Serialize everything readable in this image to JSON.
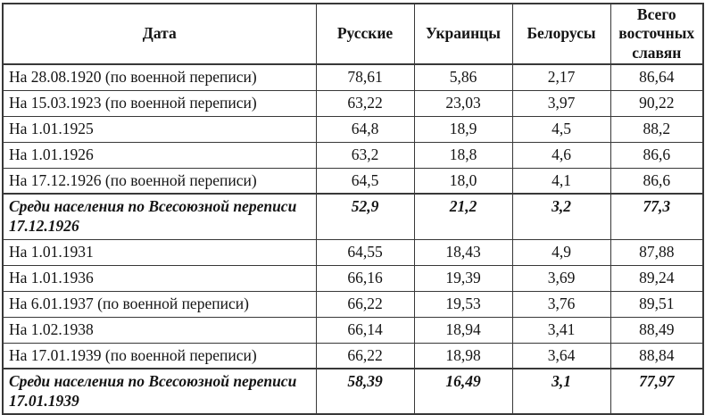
{
  "colors": {
    "background": "#ffffff",
    "border": "#383838",
    "text": "#141414"
  },
  "table": {
    "columns": [
      "Дата",
      "Русские",
      "Украинцы",
      "Белорусы",
      "Всего восточных славян"
    ],
    "rows": [
      {
        "date": "На 28.08.1920 (по военной переписи)",
        "values": [
          "78,61",
          "5,86",
          "2,17",
          "86,64"
        ],
        "emphasis": false
      },
      {
        "date": "На 15.03.1923 (по военной переписи)",
        "values": [
          "63,22",
          "23,03",
          "3,97",
          "90,22"
        ],
        "emphasis": false
      },
      {
        "date": "На 1.01.1925",
        "values": [
          "64,8",
          "18,9",
          "4,5",
          "88,2"
        ],
        "emphasis": false
      },
      {
        "date": "На 1.01.1926",
        "values": [
          "63,2",
          "18,8",
          "4,6",
          "86,6"
        ],
        "emphasis": false
      },
      {
        "date": "На 17.12.1926 (по военной переписи)",
        "values": [
          "64,5",
          "18,0",
          "4,1",
          "86,6"
        ],
        "emphasis": false
      },
      {
        "date": "Среди населения по Всесоюзной переписи 17.12.1926",
        "values": [
          "52,9",
          "21,2",
          "3,2",
          "77,3"
        ],
        "emphasis": true
      },
      {
        "date": "На 1.01.1931",
        "values": [
          "64,55",
          "18,43",
          "4,9",
          "87,88"
        ],
        "emphasis": false
      },
      {
        "date": "На 1.01.1936",
        "values": [
          "66,16",
          "19,39",
          "3,69",
          "89,24"
        ],
        "emphasis": false
      },
      {
        "date": "На 6.01.1937 (по военной переписи)",
        "values": [
          "66,22",
          "19,53",
          "3,76",
          "89,51"
        ],
        "emphasis": false
      },
      {
        "date": "На 1.02.1938",
        "values": [
          "66,14",
          "18,94",
          "3,41",
          "88,49"
        ],
        "emphasis": false
      },
      {
        "date": "На 17.01.1939 (по военной переписи)",
        "values": [
          "66,22",
          "18,98",
          "3,64",
          "88,84"
        ],
        "emphasis": false
      },
      {
        "date": "Среди населения по Всесоюзной переписи 17.01.1939",
        "values": [
          "58,39",
          "16,49",
          "3,1",
          "77,97"
        ],
        "emphasis": true
      }
    ]
  }
}
